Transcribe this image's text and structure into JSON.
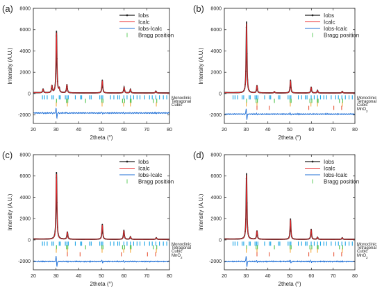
{
  "figure": {
    "panels": [
      "(a)",
      "(b)",
      "(c)",
      "(d)"
    ]
  },
  "chart_data": [
    {
      "panel": "(a)",
      "type": "line",
      "xlabel": "2theta (°)",
      "ylabel": "Intensity (A.U.)",
      "xlim": [
        20,
        80
      ],
      "ylim": [
        -2800,
        8000
      ],
      "x_ticks": [
        20,
        30,
        40,
        50,
        60,
        70,
        80
      ],
      "y_ticks": [
        -2000,
        0,
        2000,
        4000,
        6000,
        8000
      ],
      "legend": [
        "Iobs",
        "Icalc",
        "Iobs-Icalc",
        "Bragg position"
      ],
      "legend_position": "top-right",
      "peaks": [
        {
          "x": 24.3,
          "y": 350
        },
        {
          "x": 28.2,
          "y": 650
        },
        {
          "x": 30.2,
          "y": 5800
        },
        {
          "x": 31.4,
          "y": 350
        },
        {
          "x": 34.8,
          "y": 800
        },
        {
          "x": 50.4,
          "y": 1200
        },
        {
          "x": 60.0,
          "y": 550
        },
        {
          "x": 62.8,
          "y": 350
        },
        {
          "x": 74.0,
          "y": 180
        }
      ],
      "difference_baseline": -1800,
      "phases": [
        {
          "name": "Monoclinic",
          "color": "#17a3e6",
          "positions": [
            24.0,
            24.9,
            26.1,
            28.2,
            28.9,
            31.4,
            31.9,
            34.1,
            34.8,
            35.4,
            38.5,
            40.7,
            41.3,
            44.8,
            45.5,
            49.3,
            50.1,
            50.6,
            54.0,
            55.5,
            57.2,
            58.0,
            59.9,
            61.3,
            62.8,
            64.2,
            65.7,
            67.0,
            69.1,
            71.2,
            72.4,
            74.0,
            75.6,
            77.3,
            78.8
          ]
        },
        {
          "name": "Tetragonal",
          "color": "#4ec24e",
          "positions": [
            30.2,
            34.6,
            35.2,
            43.0,
            50.2,
            50.7,
            59.3,
            60.2,
            62.7,
            63.1,
            72.9,
            74.4
          ]
        },
        {
          "name": "Cubic",
          "color": "#f2a93b",
          "positions": [
            30.1,
            35.0,
            50.3,
            59.8,
            62.8,
            74.2
          ]
        }
      ]
    },
    {
      "panel": "(b)",
      "type": "line",
      "xlabel": "2theta (°)",
      "ylabel": "Intensity (A.U.)",
      "xlim": [
        20,
        80
      ],
      "ylim": [
        -2800,
        8000
      ],
      "x_ticks": [
        20,
        30,
        40,
        50,
        60,
        70,
        80
      ],
      "y_ticks": [
        -2000,
        0,
        2000,
        4000,
        6000,
        8000
      ],
      "legend": [
        "Iobs",
        "Icalc",
        "Iobs-Icalc",
        "Bragg position"
      ],
      "legend_position": "top-right",
      "peaks": [
        {
          "x": 30.2,
          "y": 6700
        },
        {
          "x": 35.0,
          "y": 700
        },
        {
          "x": 43.0,
          "y": 120
        },
        {
          "x": 50.4,
          "y": 1200
        },
        {
          "x": 59.9,
          "y": 550
        },
        {
          "x": 62.8,
          "y": 250
        },
        {
          "x": 74.2,
          "y": 150
        }
      ],
      "difference_baseline": -1900,
      "phases": [
        {
          "name": "Monoclinic",
          "color": "#17a3e6",
          "positions": [
            24.0,
            24.9,
            26.1,
            28.2,
            28.9,
            31.4,
            31.9,
            34.1,
            34.8,
            35.4,
            38.5,
            40.7,
            41.3,
            44.8,
            45.5,
            49.3,
            50.1,
            50.6,
            54.0,
            55.5,
            57.2,
            58.0,
            59.9,
            61.3,
            62.8,
            64.2,
            65.7,
            67.0,
            69.1,
            71.2,
            72.4,
            74.0,
            75.6,
            77.3,
            78.8
          ]
        },
        {
          "name": "Tetragonal",
          "color": "#4ec24e",
          "positions": [
            30.2,
            34.6,
            35.2,
            43.0,
            50.2,
            50.7,
            59.3,
            60.2,
            62.7,
            63.1,
            72.9,
            74.4
          ]
        },
        {
          "name": "Cubic",
          "color": "#f2a93b",
          "positions": [
            30.1,
            35.0,
            50.3,
            59.8,
            62.8,
            74.2
          ]
        },
        {
          "name": "MnO",
          "color": "#e8563a",
          "positions": [
            35.0,
            40.6,
            58.8,
            70.3,
            73.9
          ]
        }
      ]
    },
    {
      "panel": "(c)",
      "type": "line",
      "xlabel": "2theta (°)",
      "ylabel": "Intensity (A.U.)",
      "xlim": [
        20,
        80
      ],
      "ylim": [
        -2800,
        8000
      ],
      "x_ticks": [
        20,
        30,
        40,
        50,
        60,
        70,
        80
      ],
      "y_ticks": [
        -2000,
        0,
        2000,
        4000,
        6000,
        8000
      ],
      "legend": [
        "Iobs",
        "Icalc",
        "Iobs-Icalc",
        "Bragg position"
      ],
      "legend_position": "top-right",
      "peaks": [
        {
          "x": 30.2,
          "y": 6300
        },
        {
          "x": 35.0,
          "y": 700
        },
        {
          "x": 50.4,
          "y": 1400
        },
        {
          "x": 59.9,
          "y": 850
        },
        {
          "x": 62.8,
          "y": 250
        },
        {
          "x": 74.2,
          "y": 150
        }
      ],
      "difference_baseline": -2000,
      "phases": [
        {
          "name": "Monoclinic",
          "color": "#17a3e6",
          "positions": [
            24.0,
            24.9,
            26.1,
            28.2,
            28.9,
            31.4,
            31.9,
            34.1,
            34.8,
            35.4,
            38.5,
            40.7,
            41.3,
            44.8,
            45.5,
            49.3,
            50.1,
            50.6,
            54.0,
            55.5,
            57.2,
            58.0,
            59.9,
            61.3,
            62.8,
            64.2,
            65.7,
            67.0,
            69.1,
            71.2,
            72.4,
            74.0,
            75.6,
            77.3,
            78.8
          ]
        },
        {
          "name": "Tetragonal",
          "color": "#4ec24e",
          "positions": [
            30.2,
            34.6,
            35.2,
            43.0,
            50.2,
            50.7,
            59.3,
            60.2,
            62.7,
            63.1,
            72.9,
            74.4
          ]
        },
        {
          "name": "Cubic",
          "color": "#f2a93b",
          "positions": [
            30.1,
            35.0,
            50.3,
            59.8,
            62.8,
            74.2
          ]
        },
        {
          "name": "MnO",
          "color": "#e8563a",
          "positions": [
            35.0,
            40.6,
            58.8,
            70.3,
            73.9
          ]
        }
      ]
    },
    {
      "panel": "(d)",
      "type": "line",
      "xlabel": "2theta (°)",
      "ylabel": "Intensity (A.U.)",
      "xlim": [
        20,
        80
      ],
      "ylim": [
        -2800,
        8000
      ],
      "x_ticks": [
        20,
        30,
        40,
        50,
        60,
        70,
        80
      ],
      "y_ticks": [
        -2000,
        0,
        2000,
        4000,
        6000,
        8000
      ],
      "legend": [
        "Iobs",
        "Icalc",
        "Iobs-Icalc",
        "Bragg position"
      ],
      "legend_position": "top-right",
      "peaks": [
        {
          "x": 30.2,
          "y": 6200
        },
        {
          "x": 35.0,
          "y": 800
        },
        {
          "x": 50.4,
          "y": 1900
        },
        {
          "x": 59.9,
          "y": 950
        },
        {
          "x": 62.8,
          "y": 200
        },
        {
          "x": 74.2,
          "y": 150
        }
      ],
      "difference_baseline": -2000,
      "phases": [
        {
          "name": "Monoclinic",
          "color": "#17a3e6",
          "positions": [
            24.0,
            24.9,
            26.1,
            28.2,
            28.9,
            31.4,
            31.9,
            34.1,
            34.8,
            35.4,
            38.5,
            40.7,
            41.3,
            44.8,
            45.5,
            49.3,
            50.1,
            50.6,
            54.0,
            55.5,
            57.2,
            58.0,
            59.9,
            61.3,
            62.8,
            64.2,
            65.7,
            67.0,
            69.1,
            71.2,
            72.4,
            74.0,
            75.6,
            77.3,
            78.8
          ]
        },
        {
          "name": "Tetragonal",
          "color": "#4ec24e",
          "positions": [
            30.2,
            34.6,
            35.2,
            43.0,
            50.2,
            50.7,
            59.3,
            60.2,
            62.7,
            63.1,
            72.9,
            74.4
          ]
        },
        {
          "name": "Cubic",
          "color": "#f2a93b",
          "positions": [
            30.1,
            35.0,
            50.3,
            59.8,
            62.8,
            74.2
          ]
        },
        {
          "name": "MnO",
          "color": "#e8563a",
          "positions": [
            35.0,
            40.6,
            58.8,
            70.3,
            73.9
          ]
        }
      ]
    }
  ],
  "colors": {
    "iobs": "#222222",
    "icalc": "#e8282b",
    "diff": "#1f6fd6",
    "bragg_legend": "#6fd06f"
  }
}
